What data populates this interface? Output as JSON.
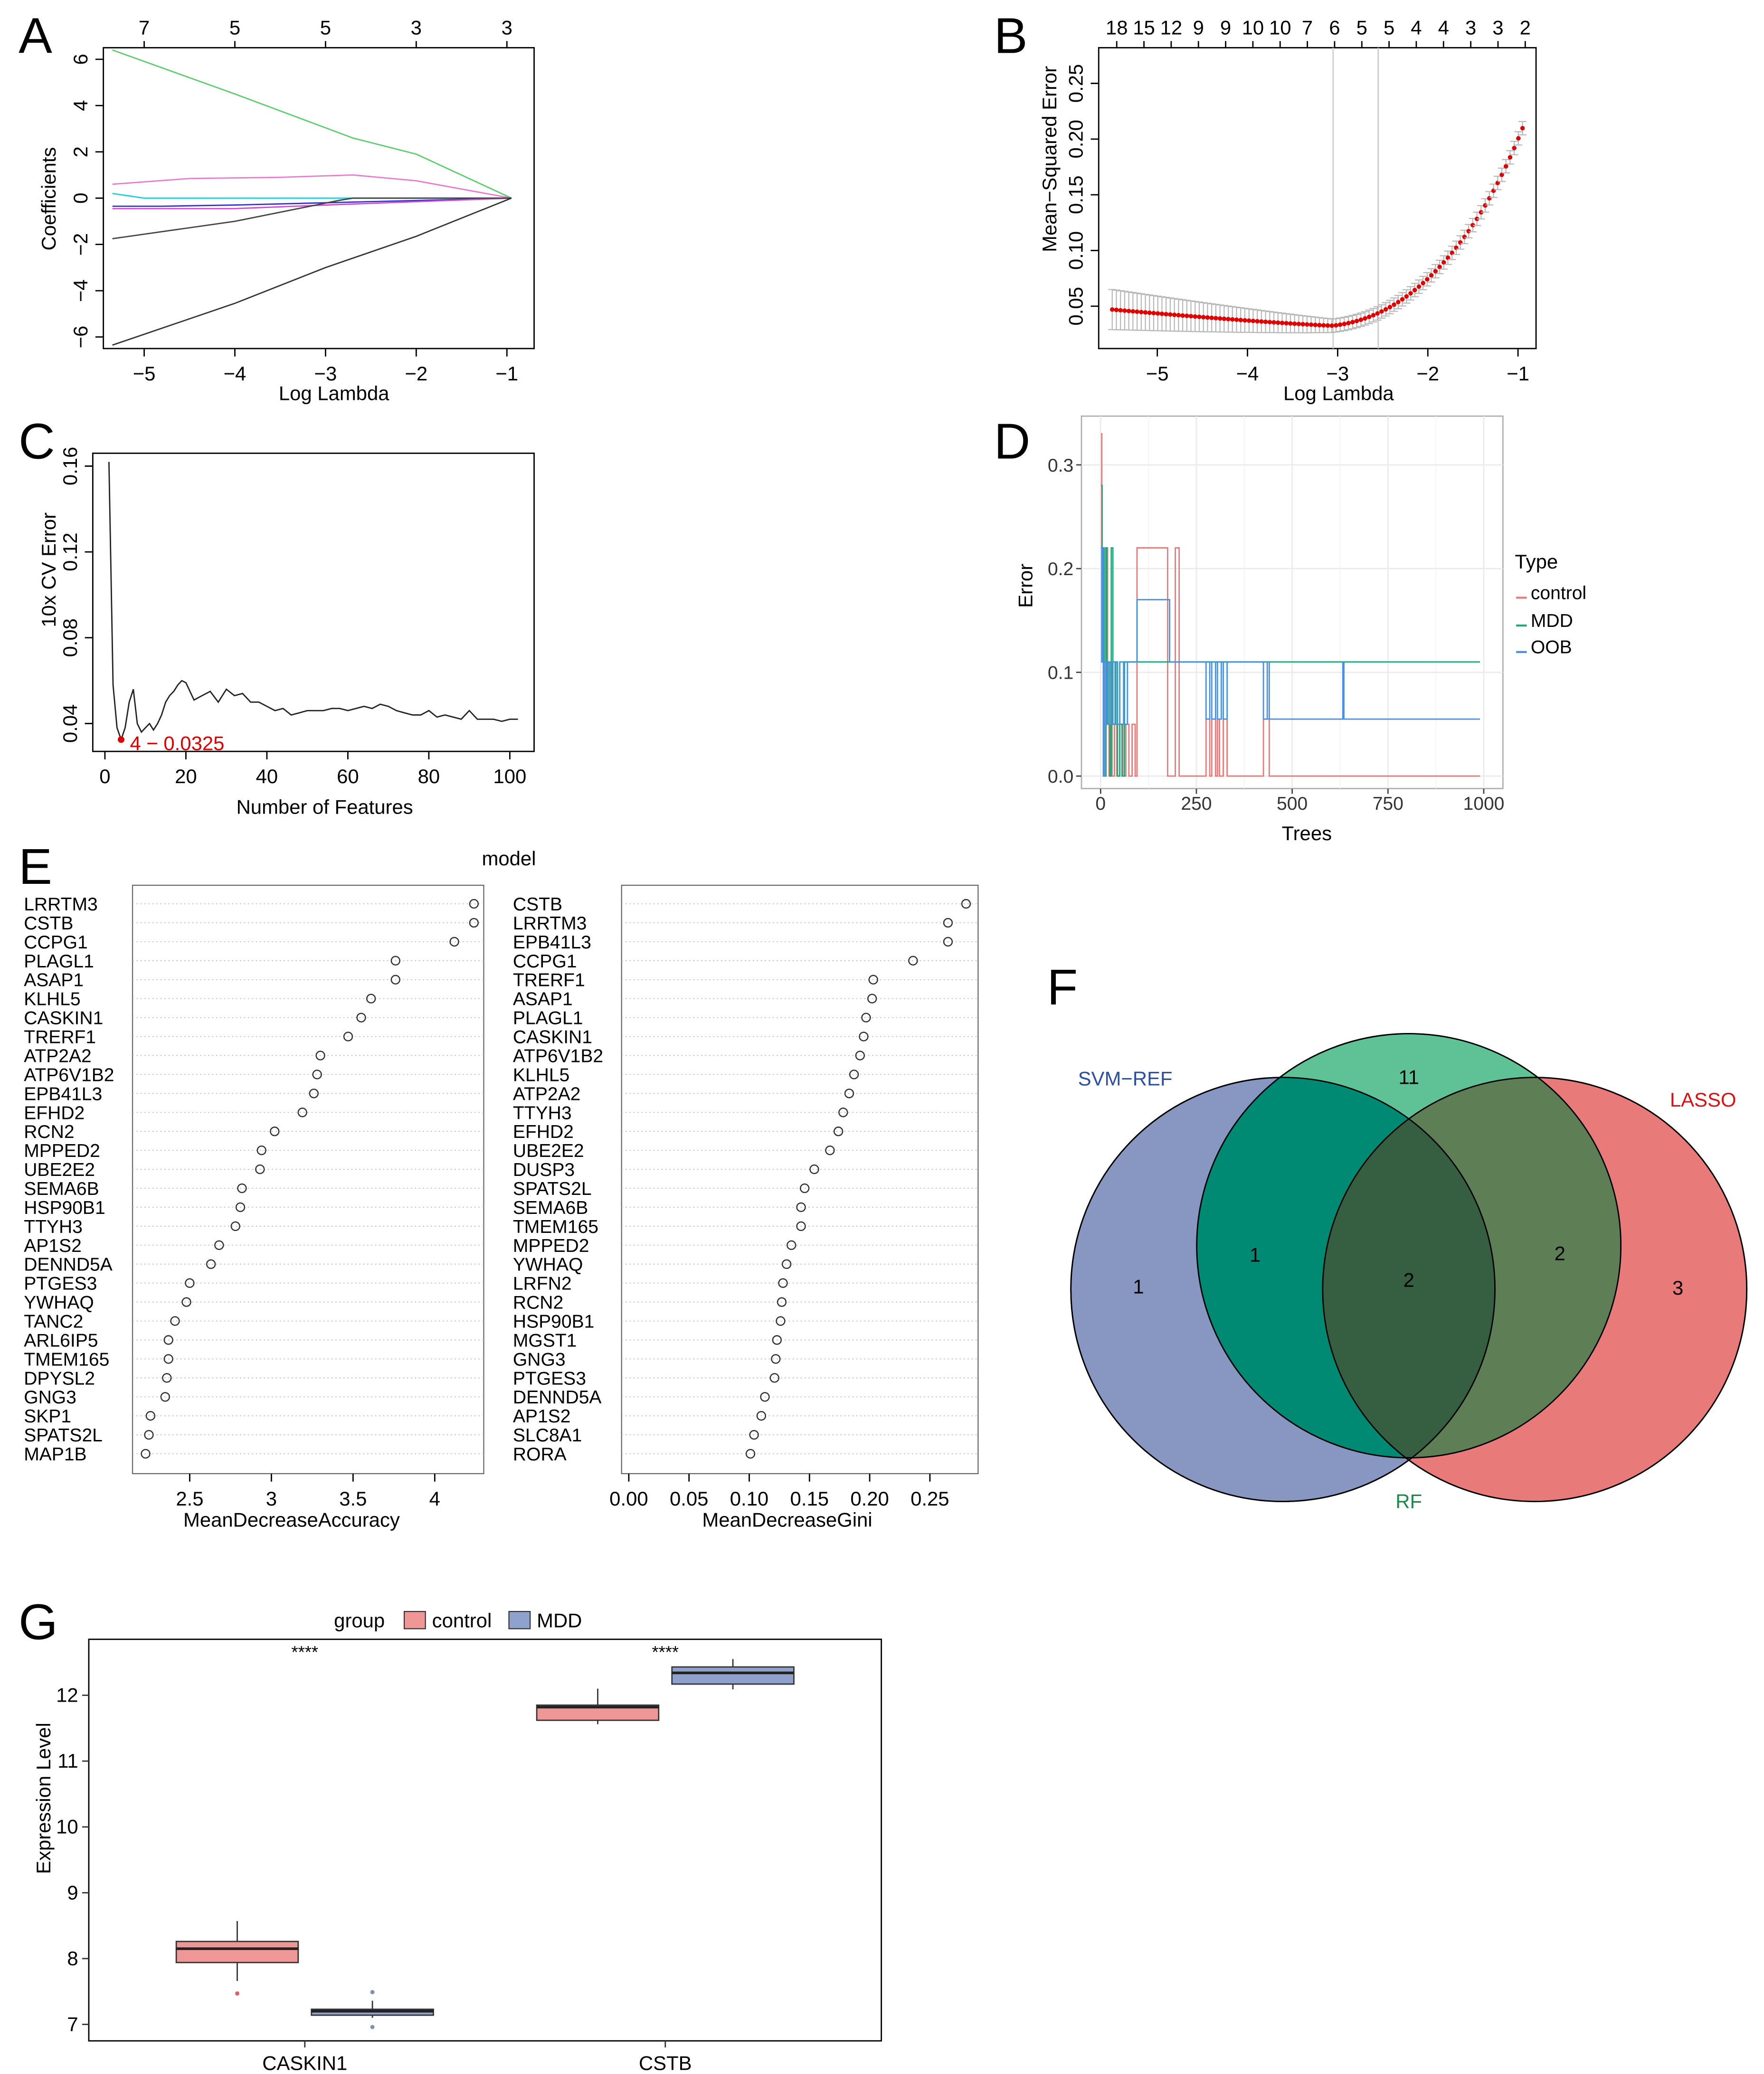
{
  "colors": {
    "control": "#e87a7a",
    "mdd": "#19a97b",
    "oob": "#4a90e2",
    "accent_red": "#e00000",
    "box_control": "#ef9696",
    "box_mdd": "#8fa2ce",
    "venn_svm": "#8896c2",
    "venn_rf": "#5fc296",
    "venn_lasso": "#e87a7a",
    "svm_label": "#2a4fa3",
    "rf_label": "#1a8a4a",
    "lasso_label": "#e01010"
  },
  "panels": {
    "A": {
      "letter": "A"
    },
    "B": {
      "letter": "B"
    },
    "C": {
      "letter": "C"
    },
    "D": {
      "letter": "D"
    },
    "E": {
      "letter": "E"
    },
    "F": {
      "letter": "F"
    },
    "G": {
      "letter": "G"
    }
  },
  "chart_data": [
    {
      "id": "A",
      "type": "line",
      "xlabel": "Log Lambda",
      "ylabel": "Coefficients",
      "xlim": [
        -5.45,
        -0.7
      ],
      "ylim": [
        -6.5,
        6.5
      ],
      "xticks": [
        -5,
        -4,
        -3,
        -2,
        -1
      ],
      "yticks": [
        -6,
        -4,
        -2,
        0,
        2,
        4,
        6
      ],
      "top_ticks": [
        {
          "x": -5,
          "label": "7"
        },
        {
          "x": -4,
          "label": "5"
        },
        {
          "x": -3,
          "label": "5"
        },
        {
          "x": -2,
          "label": "3"
        },
        {
          "x": -1,
          "label": "3"
        }
      ],
      "series": [
        {
          "name": "green",
          "color": "#5ccc6e",
          "x": [
            -5.35,
            -4,
            -2.7,
            -2,
            -0.95
          ],
          "y": [
            6.4,
            4.5,
            2.6,
            1.9,
            0
          ]
        },
        {
          "name": "pink",
          "color": "#e87ad0",
          "x": [
            -5.35,
            -4.5,
            -3.5,
            -2.7,
            -2,
            -0.95
          ],
          "y": [
            0.6,
            0.85,
            0.9,
            1.0,
            0.75,
            0
          ]
        },
        {
          "name": "cyan",
          "color": "#22cfd8",
          "x": [
            -5.35,
            -5.0,
            -4,
            -0.95
          ],
          "y": [
            0.2,
            0.0,
            0.0,
            0
          ]
        },
        {
          "name": "blue",
          "color": "#3333cc",
          "x": [
            -5.35,
            -4.8,
            -4,
            -3,
            -0.95
          ],
          "y": [
            -0.35,
            -0.35,
            -0.3,
            -0.2,
            0
          ]
        },
        {
          "name": "magenta",
          "color": "#d24bd8",
          "x": [
            -5.35,
            -4,
            -3,
            -0.95
          ],
          "y": [
            -0.45,
            -0.45,
            -0.3,
            0
          ]
        },
        {
          "name": "dark",
          "color": "#444444",
          "x": [
            -5.35,
            -4,
            -2.85,
            -2.7,
            -0.95
          ],
          "y": [
            -1.75,
            -1.0,
            -0.1,
            0,
            0
          ]
        },
        {
          "name": "black",
          "color": "#333333",
          "x": [
            -5.35,
            -4,
            -3,
            -2,
            -0.95
          ],
          "y": [
            -6.35,
            -4.55,
            -3.0,
            -1.65,
            0
          ]
        }
      ]
    },
    {
      "id": "B",
      "type": "scatter",
      "xlabel": "Log Lambda",
      "ylabel": "Mean−Squared Error",
      "xlim": [
        -5.65,
        -0.8
      ],
      "ylim": [
        0.012,
        0.282
      ],
      "xticks": [
        -5,
        -4,
        -3,
        -2,
        -1
      ],
      "yticks": [
        0.05,
        0.1,
        0.15,
        0.2,
        0.25
      ],
      "top_ticks": [
        "18",
        "15",
        "12",
        "9",
        "9",
        "10",
        "10",
        "7",
        "6",
        "5",
        "5",
        "4",
        "4",
        "3",
        "3",
        "2"
      ],
      "vlines": [
        -3.05,
        -2.55
      ],
      "curve": {
        "x_start": -5.5,
        "x_end": -0.95,
        "n": 100,
        "ci_left": 0.018,
        "ci_min": 0.006,
        "ci_right": 0.006
      }
    },
    {
      "id": "C",
      "type": "line",
      "xlabel": "Number of Features",
      "ylabel": "10x CV Error",
      "xlim": [
        -3,
        106
      ],
      "ylim": [
        0.027,
        0.166
      ],
      "xticks": [
        0,
        20,
        40,
        60,
        80,
        100
      ],
      "yticks": [
        0.04,
        0.08,
        0.12,
        0.16
      ],
      "annotation": "4 − 0.0325",
      "x": [
        1,
        2,
        3,
        4,
        5,
        6,
        7,
        8,
        9,
        10,
        11,
        12,
        13,
        14,
        15,
        16,
        17,
        18,
        19,
        20,
        22,
        24,
        26,
        28,
        30,
        32,
        34,
        36,
        38,
        40,
        42,
        44,
        46,
        48,
        50,
        52,
        54,
        56,
        58,
        60,
        62,
        64,
        66,
        68,
        70,
        72,
        74,
        76,
        78,
        80,
        82,
        84,
        86,
        88,
        90,
        92,
        94,
        96,
        98,
        100,
        102
      ],
      "y": [
        0.162,
        0.058,
        0.038,
        0.0325,
        0.038,
        0.05,
        0.056,
        0.04,
        0.036,
        0.038,
        0.04,
        0.037,
        0.04,
        0.044,
        0.05,
        0.053,
        0.055,
        0.058,
        0.06,
        0.059,
        0.051,
        0.053,
        0.055,
        0.05,
        0.056,
        0.053,
        0.054,
        0.05,
        0.05,
        0.048,
        0.046,
        0.047,
        0.044,
        0.045,
        0.046,
        0.046,
        0.046,
        0.047,
        0.047,
        0.046,
        0.047,
        0.048,
        0.047,
        0.049,
        0.048,
        0.046,
        0.045,
        0.044,
        0.044,
        0.046,
        0.043,
        0.044,
        0.043,
        0.042,
        0.046,
        0.042,
        0.042,
        0.042,
        0.041,
        0.042,
        0.042
      ]
    },
    {
      "id": "D",
      "type": "line",
      "xlabel": "Trees",
      "ylabel": "Error",
      "xlim": [
        -50,
        1050
      ],
      "ylim": [
        -0.012,
        0.347
      ],
      "xticks": [
        0,
        250,
        500,
        750,
        1000
      ],
      "yticks": [
        0.0,
        0.1,
        0.2,
        0.3
      ],
      "legend_title": "Type",
      "series": [
        {
          "name": "control",
          "points": [
            [
              1,
              0.33
            ],
            [
              3,
              0.22
            ],
            [
              5,
              0.22
            ],
            [
              6,
              0.11
            ],
            [
              10,
              0.0
            ],
            [
              14,
              0.22
            ],
            [
              18,
              0.05
            ],
            [
              22,
              0.0
            ],
            [
              26,
              0.05
            ],
            [
              30,
              0.0
            ],
            [
              36,
              0.05
            ],
            [
              42,
              0.0
            ],
            [
              50,
              0.05
            ],
            [
              58,
              0.0
            ],
            [
              66,
              0.05
            ],
            [
              74,
              0.0
            ],
            [
              82,
              0.05
            ],
            [
              90,
              0.0
            ],
            [
              95,
              0.22
            ],
            [
              170,
              0.22
            ],
            [
              175,
              0.0
            ],
            [
              195,
              0.22
            ],
            [
              205,
              0.0
            ],
            [
              270,
              0.0
            ],
            [
              275,
              0.055
            ],
            [
              285,
              0.0
            ],
            [
              290,
              0.055
            ],
            [
              300,
              0.0
            ],
            [
              305,
              0.055
            ],
            [
              310,
              0.0
            ],
            [
              320,
              0.055
            ],
            [
              330,
              0.0
            ],
            [
              420,
              0.0
            ],
            [
              425,
              0.055
            ],
            [
              440,
              0.0
            ],
            [
              630,
              0.0
            ],
            [
              635,
              0.0
            ],
            [
              990,
              0.0
            ]
          ]
        },
        {
          "name": "MDD",
          "points": [
            [
              1,
              0.28
            ],
            [
              4,
              0.22
            ],
            [
              6,
              0.11
            ],
            [
              8,
              0.22
            ],
            [
              10,
              0.0
            ],
            [
              14,
              0.22
            ],
            [
              16,
              0.05
            ],
            [
              20,
              0.11
            ],
            [
              24,
              0.0
            ],
            [
              28,
              0.22
            ],
            [
              32,
              0.05
            ],
            [
              38,
              0.11
            ],
            [
              44,
              0.0
            ],
            [
              50,
              0.05
            ],
            [
              56,
              0.0
            ],
            [
              62,
              0.11
            ],
            [
              70,
              0.11
            ],
            [
              990,
              0.11
            ]
          ]
        },
        {
          "name": "OOB",
          "points": [
            [
              1,
              0.22
            ],
            [
              3,
              0.11
            ],
            [
              5,
              0.22
            ],
            [
              7,
              0.0
            ],
            [
              10,
              0.11
            ],
            [
              14,
              0.05
            ],
            [
              18,
              0.11
            ],
            [
              24,
              0.05
            ],
            [
              30,
              0.11
            ],
            [
              40,
              0.05
            ],
            [
              50,
              0.11
            ],
            [
              60,
              0.05
            ],
            [
              70,
              0.11
            ],
            [
              90,
              0.11
            ],
            [
              95,
              0.17
            ],
            [
              175,
              0.17
            ],
            [
              180,
              0.11
            ],
            [
              270,
              0.11
            ],
            [
              275,
              0.055
            ],
            [
              285,
              0.11
            ],
            [
              290,
              0.055
            ],
            [
              300,
              0.11
            ],
            [
              305,
              0.055
            ],
            [
              315,
              0.11
            ],
            [
              320,
              0.055
            ],
            [
              330,
              0.11
            ],
            [
              420,
              0.11
            ],
            [
              425,
              0.055
            ],
            [
              435,
              0.11
            ],
            [
              440,
              0.055
            ],
            [
              630,
              0.055
            ],
            [
              632,
              0.11
            ],
            [
              635,
              0.055
            ],
            [
              990,
              0.055
            ]
          ]
        }
      ]
    },
    {
      "id": "E1",
      "type": "scatter",
      "title": "model",
      "xlabel": "MeanDecreaseAccuracy",
      "xlim": [
        2.15,
        4.3
      ],
      "xticks": [
        2.5,
        3.0,
        3.5,
        4.0
      ],
      "labels": [
        "LRRTM3",
        "CSTB",
        "CCPG1",
        "PLAGL1",
        "ASAP1",
        "KLHL5",
        "CASKIN1",
        "TRERF1",
        "ATP2A2",
        "ATP6V1B2",
        "EPB41L3",
        "EFHD2",
        "RCN2",
        "MPPED2",
        "UBE2E2",
        "SEMA6B",
        "HSP90B1",
        "TTYH3",
        "AP1S2",
        "DENND5A",
        "PTGES3",
        "YWHAQ",
        "TANC2",
        "ARL6IP5",
        "TMEM165",
        "DPYSL2",
        "GNG3",
        "SKP1",
        "SPATS2L",
        "MAP1B"
      ],
      "values": [
        4.24,
        4.24,
        4.12,
        3.76,
        3.76,
        3.61,
        3.55,
        3.47,
        3.3,
        3.28,
        3.26,
        3.19,
        3.02,
        2.94,
        2.93,
        2.82,
        2.81,
        2.78,
        2.68,
        2.63,
        2.5,
        2.48,
        2.41,
        2.37,
        2.37,
        2.36,
        2.35,
        2.26,
        2.25,
        2.23
      ]
    },
    {
      "id": "E2",
      "type": "scatter",
      "xlabel": "MeanDecreaseGini",
      "xlim": [
        -0.006,
        0.29
      ],
      "xticks": [
        "0.00",
        "0.05",
        "0.10",
        "0.15",
        "0.20",
        "0.25"
      ],
      "labels": [
        "CSTB",
        "LRRTM3",
        "EPB41L3",
        "CCPG1",
        "TRERF1",
        "ASAP1",
        "PLAGL1",
        "CASKIN1",
        "ATP6V1B2",
        "KLHL5",
        "ATP2A2",
        "TTYH3",
        "EFHD2",
        "UBE2E2",
        "DUSP3",
        "SPATS2L",
        "SEMA6B",
        "TMEM165",
        "MPPED2",
        "YWHAQ",
        "LRFN2",
        "RCN2",
        "HSP90B1",
        "MGST1",
        "GNG3",
        "PTGES3",
        "DENND5A",
        "AP1S2",
        "SLC8A1",
        "RORA"
      ],
      "values": [
        0.28,
        0.265,
        0.265,
        0.236,
        0.203,
        0.202,
        0.197,
        0.195,
        0.192,
        0.187,
        0.183,
        0.178,
        0.174,
        0.167,
        0.154,
        0.146,
        0.143,
        0.143,
        0.135,
        0.131,
        0.128,
        0.127,
        0.126,
        0.123,
        0.122,
        0.121,
        0.113,
        0.11,
        0.104,
        0.101
      ]
    },
    {
      "id": "G",
      "type": "box",
      "ylabel": "Expression Level",
      "ylim": [
        6.75,
        12.85
      ],
      "yticks": [
        7,
        8,
        9,
        10,
        11,
        12
      ],
      "legend_title": "group",
      "legend": [
        "control",
        "MDD"
      ],
      "categories": [
        "CASKIN1",
        "CSTB"
      ],
      "significance": [
        "****",
        "****"
      ],
      "boxes": [
        {
          "cat": "CASKIN1",
          "group": "control",
          "q1": 7.94,
          "median": 8.15,
          "q3": 8.26,
          "whisker_low": 7.66,
          "whisker_high": 8.57,
          "outliers": [
            7.47
          ]
        },
        {
          "cat": "CASKIN1",
          "group": "MDD",
          "q1": 7.14,
          "median": 7.2,
          "q3": 7.23,
          "whisker_low": 7.1,
          "whisker_high": 7.36,
          "outliers": [
            7.49,
            6.96
          ]
        },
        {
          "cat": "CSTB",
          "group": "control",
          "q1": 11.62,
          "median": 11.82,
          "q3": 11.85,
          "whisker_low": 11.56,
          "whisker_high": 12.1,
          "outliers": []
        },
        {
          "cat": "CSTB",
          "group": "MDD",
          "q1": 12.17,
          "median": 12.34,
          "q3": 12.43,
          "whisker_low": 12.09,
          "whisker_high": 12.55,
          "outliers": []
        }
      ]
    }
  ],
  "venn": {
    "sets": [
      {
        "name": "SVM−REF",
        "label": "SVM−REF"
      },
      {
        "name": "RF",
        "label": "RF"
      },
      {
        "name": "LASSO",
        "label": "LASSO"
      }
    ],
    "regions": {
      "svm_only": "1",
      "rf_only": "11",
      "lasso_only": "3",
      "svm_rf": "1",
      "rf_lasso": "2",
      "all": "2"
    }
  }
}
